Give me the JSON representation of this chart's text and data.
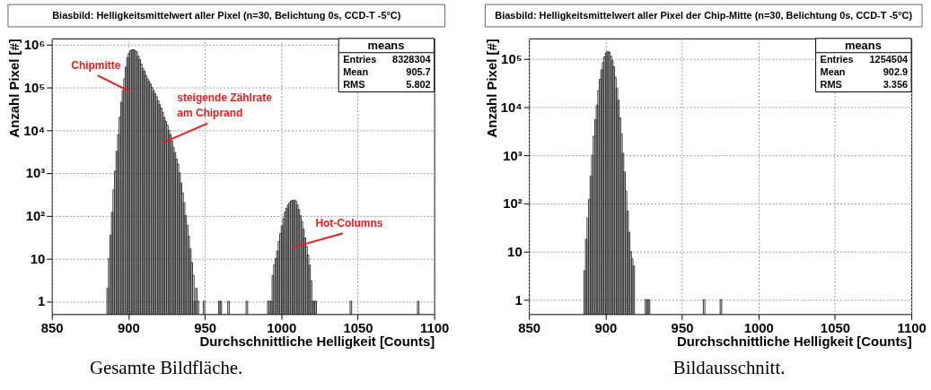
{
  "chart_data": [
    {
      "type": "histogram",
      "title": "Biasbild: Helligkeitsmittelwert aller Pixel (n=30, Belichtung 0s, CCD-T -5°C)",
      "xlabel": "Durchschnittliche Helligkeit [Counts]",
      "ylabel": "Anzahl Pixel [#]",
      "color": "#333333",
      "bins": [
        886,
        887,
        888,
        889,
        890,
        891,
        892,
        893,
        894,
        895,
        896,
        897,
        898,
        899,
        900,
        901,
        902,
        903,
        904,
        905,
        906,
        907,
        908,
        909,
        910,
        911,
        912,
        913,
        914,
        915,
        916,
        917,
        918,
        919,
        920,
        921,
        922,
        923,
        924,
        925,
        926,
        927,
        928,
        929,
        930,
        931,
        932,
        933,
        934,
        935,
        936,
        937,
        938,
        939,
        940,
        941,
        942,
        943,
        944,
        945,
        946,
        949,
        950,
        959,
        960,
        961,
        965,
        966,
        977,
        978,
        991,
        992,
        993,
        994,
        995,
        996,
        997,
        998,
        999,
        1000,
        1001,
        1002,
        1003,
        1004,
        1005,
        1006,
        1007,
        1008,
        1009,
        1010,
        1011,
        1012,
        1013,
        1014,
        1015,
        1016,
        1017,
        1018,
        1019,
        1020,
        1021,
        1022,
        1023,
        1045,
        1046,
        1089,
        1090
      ],
      "values": [
        2,
        10,
        35,
        120,
        400,
        1100,
        3200,
        7900,
        20000,
        45000,
        85000,
        160000,
        300000,
        500000,
        630000,
        720000,
        760000,
        760000,
        720000,
        680000,
        540000,
        450000,
        350000,
        280000,
        240000,
        190000,
        160000,
        140000,
        120000,
        100000,
        85000,
        72000,
        60000,
        49000,
        40000,
        33000,
        26000,
        20000,
        16000,
        13000,
        10000,
        7900,
        5600,
        4000,
        3000,
        2100,
        1600,
        1000,
        580,
        340,
        200,
        100,
        59,
        33,
        17,
        8,
        4,
        1,
        2,
        1,
        null,
        1,
        null,
        1,
        1,
        null,
        1,
        null,
        1,
        null,
        1,
        1,
        1,
        4,
        7,
        10,
        15,
        25,
        38,
        58,
        85,
        120,
        150,
        180,
        200,
        220,
        230,
        230,
        220,
        180,
        140,
        100,
        73,
        49,
        30,
        19,
        12,
        7,
        3,
        1,
        1,
        1,
        null,
        1,
        null,
        1
      ],
      "xlim": [
        850,
        1100
      ],
      "xticks": [
        850,
        900,
        950,
        1000,
        1050,
        1100
      ],
      "ylim": [
        0.5,
        1400000
      ],
      "yticks": [
        1,
        10,
        {
          "value": 100,
          "label": "10²"
        },
        {
          "value": 1000,
          "label": "10³"
        },
        {
          "value": 10000,
          "label": "10⁴"
        },
        {
          "value": 100000,
          "label": "10⁵"
        },
        {
          "value": 1000000,
          "label": "10⁶"
        }
      ],
      "log": true,
      "grid": true,
      "annotations": [
        {
          "text": "Chipmitte",
          "x": 901,
          "y": 80000
        },
        {
          "text": "steigende Zählrate\nam Chiprand",
          "x": 922,
          "y": 5000
        },
        {
          "text": "Hot-Columns",
          "x": 1007,
          "y": 18
        },
        "means",
        "Entries",
        "8328304",
        "Mean",
        "905.7",
        "RMS",
        "5.802",
        "Gesamte Bildfläche."
      ]
    },
    {
      "type": "histogram",
      "title": "Biasbild: Helligkeitsmittelwert aller Pixel der Chip-Mitte (n=30, Belichtung 0s, CCD-T -5°C)",
      "xlabel": "Durchschnittliche Helligkeit [Counts]",
      "ylabel": "Anzahl Pixel [#]",
      "color": "#333333",
      "bins": [
        886,
        887,
        888,
        889,
        890,
        891,
        892,
        893,
        894,
        895,
        896,
        897,
        898,
        899,
        900,
        901,
        902,
        903,
        904,
        905,
        906,
        907,
        908,
        909,
        910,
        911,
        912,
        913,
        914,
        915,
        916,
        917,
        918,
        919,
        926,
        927,
        928,
        929,
        964,
        965,
        975,
        976
      ],
      "values": [
        4,
        18,
        50,
        120,
        370,
        1000,
        2500,
        5500,
        11000,
        22000,
        38000,
        60000,
        85000,
        112000,
        135000,
        145000,
        140000,
        115000,
        95000,
        70000,
        42000,
        25000,
        14000,
        6000,
        2800,
        1100,
        450,
        180,
        70,
        25,
        10,
        7,
        5,
        null,
        1,
        1,
        1,
        null,
        1,
        null,
        1
      ],
      "xlim": [
        850,
        1100
      ],
      "xticks": [
        850,
        900,
        950,
        1000,
        1050,
        1100
      ],
      "ylim": [
        0.5,
        270000
      ],
      "yticks": [
        1,
        10,
        {
          "value": 100,
          "label": "10²"
        },
        {
          "value": 1000,
          "label": "10³"
        },
        {
          "value": 10000,
          "label": "10⁴"
        },
        {
          "value": 100000,
          "label": "10⁵"
        }
      ],
      "log": true,
      "grid": true,
      "annotations": [
        "means",
        "Entries",
        "1254504",
        "Mean",
        "902.9",
        "RMS",
        "3.356",
        "Bildausschnitt."
      ]
    }
  ]
}
